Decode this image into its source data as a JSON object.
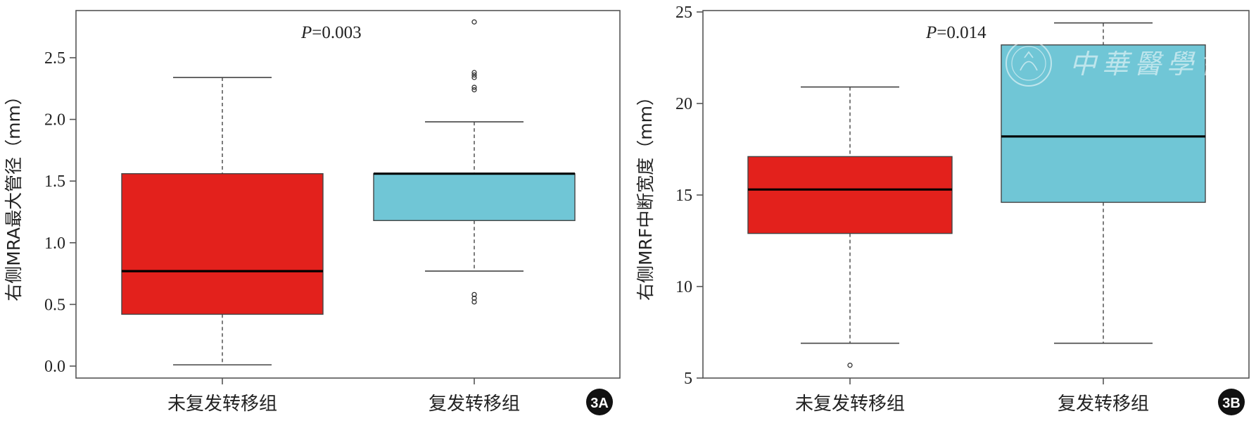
{
  "chart_data": [
    {
      "type": "box",
      "panel_label": "3A",
      "ylabel": "右侧MRA最大管径（mm）",
      "ylim": [
        -0.1,
        2.85
      ],
      "yticks": [
        "0.0",
        "0.5",
        "1.0",
        "1.5",
        "2.0",
        "2.5"
      ],
      "ytick_values": [
        0.0,
        0.5,
        1.0,
        1.5,
        2.0,
        2.5
      ],
      "p_label": "P",
      "p_value": "=0.003",
      "categories": [
        "未复发转移组",
        "复发转移组"
      ],
      "boxes": [
        {
          "name": "未复发转移组",
          "color": "#e3211c",
          "min": 0.01,
          "q1": 0.42,
          "median": 0.77,
          "q3": 1.56,
          "max": 2.34,
          "outliers": []
        },
        {
          "name": "复发转移组",
          "color": "#70c6d6",
          "min": 0.77,
          "q1": 1.18,
          "median": 1.56,
          "q3": 1.56,
          "max": 1.98,
          "outliers": [
            0.52,
            0.55,
            0.58,
            2.24,
            2.26,
            2.34,
            2.36,
            2.38,
            2.79
          ]
        }
      ]
    },
    {
      "type": "box",
      "panel_label": "3B",
      "ylabel": "右侧MRF中断宽度（mm）",
      "ylim": [
        5,
        25
      ],
      "yticks": [
        "5",
        "10",
        "15",
        "20",
        "25"
      ],
      "ytick_values": [
        5,
        10,
        15,
        20,
        25
      ],
      "p_label": "P",
      "p_value": "=0.014",
      "categories": [
        "未复发转移组",
        "复发转移组"
      ],
      "boxes": [
        {
          "name": "未复发转移组",
          "color": "#e3211c",
          "min": 6.9,
          "q1": 12.9,
          "median": 15.3,
          "q3": 17.1,
          "max": 20.9,
          "outliers": [
            5.7
          ]
        },
        {
          "name": "复发转移组",
          "color": "#70c6d6",
          "min": 6.9,
          "q1": 14.6,
          "median": 18.2,
          "q3": 23.2,
          "max": 24.4,
          "outliers": []
        }
      ]
    }
  ],
  "watermark": {
    "text": "中華醫學會"
  }
}
